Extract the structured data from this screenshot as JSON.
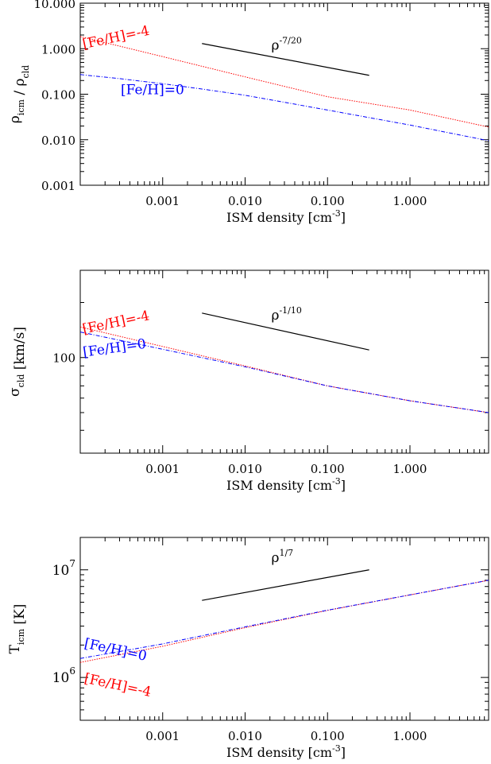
{
  "chart_data": [
    {
      "type": "line",
      "xlabel": "ISM density [cm",
      "xlabel_sup": "-3",
      "xlabel_end": "]",
      "ylabel_parts": [
        {
          "text": "ρ",
          "sub": "icm"
        },
        {
          "text": " / ρ",
          "sub": "cld"
        }
      ],
      "xscale": "log",
      "yscale": "log",
      "xlim": [
        0.0001,
        9
      ],
      "ylim": [
        0.001,
        10
      ],
      "xticks": [
        {
          "value": 0.001,
          "label": "0.001"
        },
        {
          "value": 0.01,
          "label": "0.010"
        },
        {
          "value": 0.1,
          "label": "0.100"
        },
        {
          "value": 1,
          "label": "1.000"
        }
      ],
      "yticks": [
        {
          "value": 0.001,
          "label": "0.001"
        },
        {
          "value": 0.01,
          "label": "0.010"
        },
        {
          "value": 0.1,
          "label": "0.100"
        },
        {
          "value": 1,
          "label": "1.000"
        },
        {
          "value": 10,
          "label": "10.000"
        }
      ],
      "series": [
        {
          "name": "[Fe/H]=-4",
          "color": "#ff0000",
          "style": "dotted",
          "x": [
            0.0001,
            0.001,
            0.01,
            0.1,
            1,
            9
          ],
          "y": [
            1.85,
            0.67,
            0.24,
            0.088,
            0.045,
            0.019
          ]
        },
        {
          "name": "[Fe/H]=0",
          "color": "#0000ff",
          "style": "dashdot",
          "x": [
            0.0001,
            0.0003,
            0.001,
            0.003,
            0.01,
            0.1,
            1,
            9
          ],
          "y": [
            0.27,
            0.22,
            0.17,
            0.13,
            0.095,
            0.045,
            0.021,
            0.0095
          ]
        }
      ],
      "slope_line": {
        "label": "ρ",
        "label_sup": "-7/20",
        "x": [
          0.003,
          0.32
        ],
        "y": [
          1.3,
          0.26
        ]
      },
      "annotations": [
        {
          "text": "[Fe/H]=-4",
          "color": "#ff0000",
          "x": 0.00011,
          "y": 1.0,
          "rotate": 12
        },
        {
          "text": "[Fe/H]=0",
          "color": "#0000ff",
          "x": 0.00031,
          "y": 0.1,
          "rotate": 0
        }
      ]
    },
    {
      "type": "line",
      "xlabel": "ISM density [cm",
      "xlabel_sup": "-3",
      "xlabel_end": "]",
      "ylabel_parts": [
        {
          "text": "σ",
          "sub": "cld"
        },
        {
          "text": " [km/s]",
          "sub": ""
        }
      ],
      "xscale": "log",
      "yscale": "log",
      "xlim": [
        0.0001,
        9
      ],
      "ylim": [
        30,
        300
      ],
      "xticks": [
        {
          "value": 0.001,
          "label": "0.001"
        },
        {
          "value": 0.01,
          "label": "0.010"
        },
        {
          "value": 0.1,
          "label": "0.100"
        },
        {
          "value": 1,
          "label": "1.000"
        }
      ],
      "yticks": [
        {
          "value": 100,
          "label": "100"
        }
      ],
      "series": [
        {
          "name": "[Fe/H]=-4",
          "color": "#ff0000",
          "style": "dotted",
          "x": [
            0.0001,
            0.001,
            0.01,
            0.1,
            1,
            9
          ],
          "y": [
            147,
            115,
            90,
            70,
            58,
            50
          ]
        },
        {
          "name": "[Fe/H]=0",
          "color": "#0000ff",
          "style": "dashdot",
          "x": [
            0.0001,
            0.001,
            0.01,
            0.1,
            1,
            9
          ],
          "y": [
            138,
            111,
            89,
            70,
            58,
            50
          ]
        }
      ],
      "slope_line": {
        "label": "ρ",
        "label_sup": "-1/10",
        "x": [
          0.003,
          0.32
        ],
        "y": [
          175,
          110
        ]
      },
      "annotations": [
        {
          "text": "[Fe/H]=-4",
          "color": "#ff0000",
          "x": 0.00011,
          "y": 135,
          "rotate": 12
        },
        {
          "text": "[Fe/H]=0",
          "color": "#0000ff",
          "x": 0.00011,
          "y": 101,
          "rotate": 8
        }
      ]
    },
    {
      "type": "line",
      "xlabel": "ISM density [cm",
      "xlabel_sup": "-3",
      "xlabel_end": "]",
      "ylabel_parts": [
        {
          "text": "T",
          "sub": "icm"
        },
        {
          "text": " [K]",
          "sub": ""
        }
      ],
      "xscale": "log",
      "yscale": "log",
      "xlim": [
        0.0001,
        9
      ],
      "ylim": [
        400000,
        20000000
      ],
      "xticks": [
        {
          "value": 0.001,
          "label": "0.001"
        },
        {
          "value": 0.01,
          "label": "0.010"
        },
        {
          "value": 0.1,
          "label": "0.100"
        },
        {
          "value": 1,
          "label": "1.000"
        }
      ],
      "yticks": [
        {
          "value": 1000000,
          "label": "10",
          "sup": "6"
        },
        {
          "value": 10000000,
          "label": "10",
          "sup": "7"
        }
      ],
      "series": [
        {
          "name": "[Fe/H]=-4",
          "color": "#ff0000",
          "style": "dotted",
          "x": [
            0.0001,
            0.001,
            0.01,
            0.1,
            1,
            9
          ],
          "y": [
            1380000,
            1950000,
            2900000,
            4200000,
            5850000,
            8000000
          ]
        },
        {
          "name": "[Fe/H]=0",
          "color": "#0000ff",
          "style": "dashdot",
          "x": [
            0.0001,
            0.001,
            0.01,
            0.1,
            1,
            9
          ],
          "y": [
            1500000,
            2050000,
            2950000,
            4220000,
            5850000,
            8000000
          ]
        }
      ],
      "slope_line": {
        "label": "ρ",
        "label_sup": "1/7",
        "x": [
          0.003,
          0.32
        ],
        "y": [
          5200000,
          10000000
        ]
      },
      "annotations": [
        {
          "text": "[Fe/H]=0",
          "color": "#0000ff",
          "x": 0.00011,
          "y": 1900000,
          "rotate": -12
        },
        {
          "text": "[Fe/H]=-4",
          "color": "#ff0000",
          "x": 0.00011,
          "y": 900000,
          "rotate": -12
        }
      ]
    }
  ]
}
